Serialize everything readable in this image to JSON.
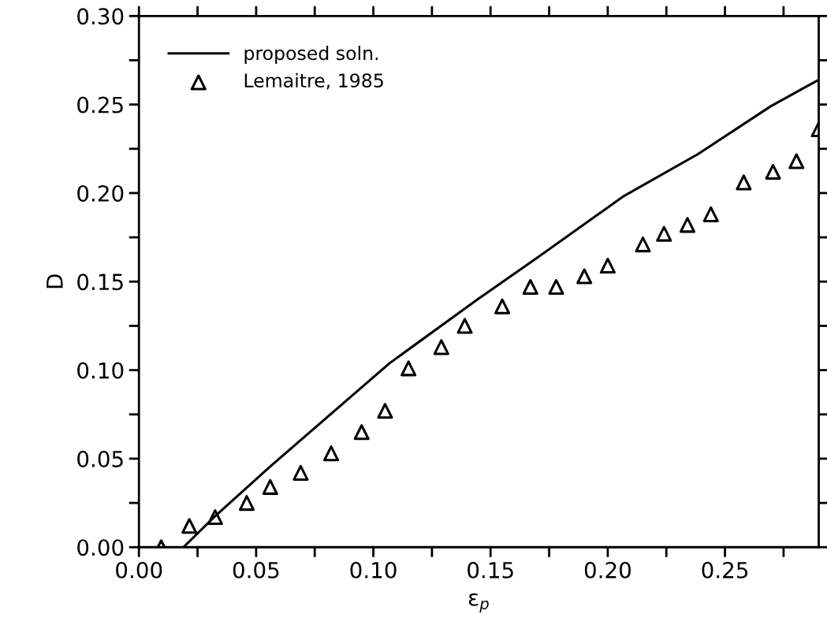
{
  "chart_data": {
    "type": "line",
    "xlabel": "ε$_{p}$",
    "ylabel": "D",
    "xlim": [
      0,
      0.29
    ],
    "ylim": [
      0,
      0.3
    ],
    "xticks": [
      {
        "value": 0,
        "label": "0.00"
      },
      {
        "value": 0.025,
        "label": null
      },
      {
        "value": 0.05,
        "label": "0.05"
      },
      {
        "value": 0.075,
        "label": null
      },
      {
        "value": 0.1,
        "label": "0.10"
      },
      {
        "value": 0.125,
        "label": null
      },
      {
        "value": 0.15,
        "label": "0.15"
      },
      {
        "value": 0.175,
        "label": null
      },
      {
        "value": 0.2,
        "label": "0.20"
      },
      {
        "value": 0.225,
        "label": null
      },
      {
        "value": 0.25,
        "label": "0.25"
      },
      {
        "value": 0.275,
        "label": null
      }
    ],
    "yticks": [
      {
        "value": 0,
        "label": "0.00"
      },
      {
        "value": 0.025,
        "label": null
      },
      {
        "value": 0.05,
        "label": "0.05"
      },
      {
        "value": 0.075,
        "label": null
      },
      {
        "value": 0.1,
        "label": "0.10"
      },
      {
        "value": 0.125,
        "label": null
      },
      {
        "value": 0.15,
        "label": "0.15"
      },
      {
        "value": 0.175,
        "label": null
      },
      {
        "value": 0.2,
        "label": "0.20"
      },
      {
        "value": 0.225,
        "label": null
      },
      {
        "value": 0.25,
        "label": "0.25"
      },
      {
        "value": 0.275,
        "label": null
      },
      {
        "value": 0.3,
        "label": "0.30"
      }
    ],
    "grid": false,
    "legend": "top left",
    "series": [
      {
        "name": "proposed soln.",
        "type": "line",
        "color": "#000000",
        "marker": "none",
        "line_style": "solid",
        "x": [
          0.019,
          0.0325,
          0.056,
          0.107,
          0.1445,
          0.1705,
          0.2065,
          0.2385,
          0.2695,
          0.29
        ],
        "values": [
          0,
          0.0175,
          0.0456,
          0.104,
          0.14,
          0.164,
          0.198,
          0.222,
          0.249,
          0.264
        ]
      },
      {
        "name": "Lemaitre, 1985",
        "type": "scatter",
        "color": "#000000",
        "marker": "triangle",
        "x": [
          0.0095,
          0.0215,
          0.0325,
          0.046,
          0.056,
          0.069,
          0.082,
          0.095,
          0.105,
          0.115,
          0.129,
          0.139,
          0.155,
          0.167,
          0.178,
          0.19,
          0.2,
          0.215,
          0.224,
          0.234,
          0.244,
          0.258,
          0.2705,
          0.2805,
          0.29
        ],
        "values": [
          0,
          0.012,
          0.017,
          0.025,
          0.034,
          0.042,
          0.053,
          0.065,
          0.077,
          0.101,
          0.113,
          0.125,
          0.136,
          0.147,
          0.147,
          0.153,
          0.159,
          0.171,
          0.177,
          0.182,
          0.188,
          0.206,
          0.212,
          0.218,
          0.236
        ]
      }
    ]
  }
}
